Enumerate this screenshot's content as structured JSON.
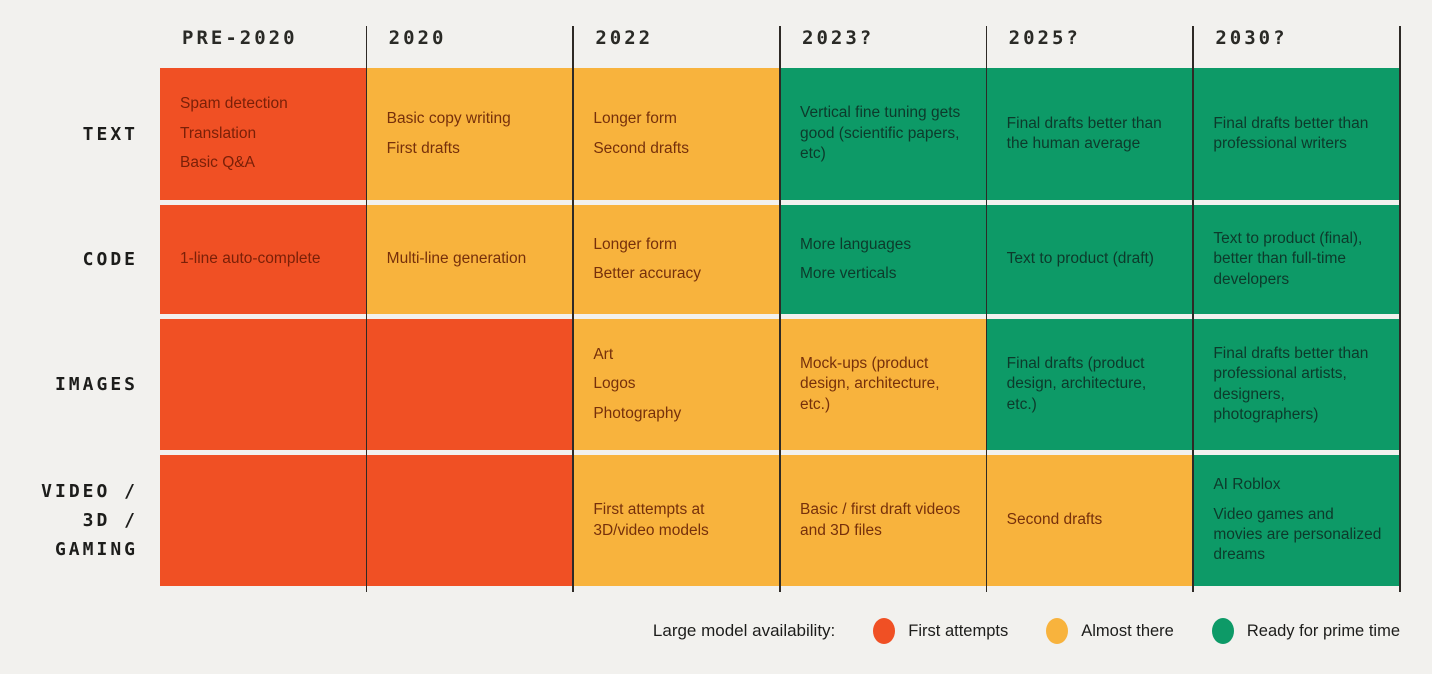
{
  "page": {
    "background": "#f2f1ee"
  },
  "legend": {
    "label": "Large model availability:",
    "items": [
      {
        "key": "first_attempts",
        "label": "First attempts",
        "color": "#f05024"
      },
      {
        "key": "almost_there",
        "label": "Almost there",
        "color": "#f8b33d"
      },
      {
        "key": "ready_for_prime_time",
        "label": "Ready for prime time",
        "color": "#0d9a67"
      }
    ]
  },
  "chart_data": {
    "type": "table",
    "title": "",
    "columns": [
      "PRE-2020",
      "2020",
      "2022",
      "2023?",
      "2025?",
      "2030?"
    ],
    "status_colors": {
      "first_attempts": "#f05024",
      "almost_there": "#f8b33d",
      "ready_for_prime_time": "#0d9a67"
    },
    "status_text_colors": {
      "first_attempts": "#7a2008",
      "almost_there": "#76300b",
      "ready_for_prime_time": "#0d3a2b"
    },
    "legend_position": "bottom-right",
    "rows": [
      {
        "label_lines": [
          "TEXT"
        ],
        "cells": [
          {
            "status": "first_attempts",
            "items": [
              "Spam detection",
              "Translation",
              "Basic Q&A"
            ]
          },
          {
            "status": "almost_there",
            "items": [
              "Basic copy writing",
              "First drafts"
            ]
          },
          {
            "status": "almost_there",
            "items": [
              "Longer form",
              "Second drafts"
            ]
          },
          {
            "status": "ready_for_prime_time",
            "items": [
              "Vertical fine tuning gets good (scientific papers, etc)"
            ]
          },
          {
            "status": "ready_for_prime_time",
            "items": [
              "Final drafts better than the human average"
            ]
          },
          {
            "status": "ready_for_prime_time",
            "items": [
              "Final drafts better than professional writers"
            ]
          }
        ]
      },
      {
        "label_lines": [
          "CODE"
        ],
        "cells": [
          {
            "status": "first_attempts",
            "items": [
              "1-line auto-complete"
            ]
          },
          {
            "status": "almost_there",
            "items": [
              "Multi-line generation"
            ]
          },
          {
            "status": "almost_there",
            "items": [
              "Longer form",
              "Better accuracy"
            ]
          },
          {
            "status": "ready_for_prime_time",
            "items": [
              "More languages",
              "More verticals"
            ]
          },
          {
            "status": "ready_for_prime_time",
            "items": [
              "Text to product (draft)"
            ]
          },
          {
            "status": "ready_for_prime_time",
            "items": [
              "Text to product (final), better than full-time developers"
            ]
          }
        ]
      },
      {
        "label_lines": [
          "IMAGES"
        ],
        "cells": [
          {
            "status": "first_attempts",
            "items": []
          },
          {
            "status": "first_attempts",
            "items": []
          },
          {
            "status": "almost_there",
            "items": [
              "Art",
              "Logos",
              "Photography"
            ]
          },
          {
            "status": "almost_there",
            "items": [
              "Mock-ups (product design, architecture, etc.)"
            ]
          },
          {
            "status": "ready_for_prime_time",
            "items": [
              "Final drafts (product design, architecture, etc.)"
            ]
          },
          {
            "status": "ready_for_prime_time",
            "items": [
              "Final drafts better than professional artists, designers, photographers)"
            ]
          }
        ]
      },
      {
        "label_lines": [
          "VIDEO /",
          "3D /",
          "GAMING"
        ],
        "cells": [
          {
            "status": "first_attempts",
            "items": []
          },
          {
            "status": "first_attempts",
            "items": []
          },
          {
            "status": "almost_there",
            "items": [
              "First attempts at 3D/video models"
            ]
          },
          {
            "status": "almost_there",
            "items": [
              "Basic / first draft videos and 3D files"
            ]
          },
          {
            "status": "almost_there",
            "items": [
              "Second drafts"
            ]
          },
          {
            "status": "ready_for_prime_time",
            "items": [
              "AI Roblox",
              "Video games and movies are personalized dreams"
            ]
          }
        ]
      }
    ]
  }
}
